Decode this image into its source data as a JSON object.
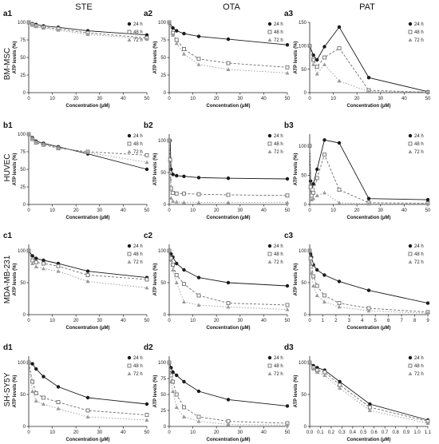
{
  "figure": {
    "column_headers": [
      "STE",
      "OTA",
      "PAT"
    ],
    "row_headers": [
      "BM-MSC",
      "HUVEC",
      "MDA-MB-231",
      "SH-SY5Y"
    ],
    "colors": {
      "s24": "#1a1a1a",
      "s48": "#6e6e6e",
      "s72": "#9a9a9a"
    }
  },
  "chart_data": [
    {
      "id": "a1",
      "type": "line",
      "xlabel": "Concentration (μM)",
      "ylabel": "ATP levels (%)",
      "x": [
        0,
        1.56,
        3.12,
        6.25,
        12.5,
        25,
        50
      ],
      "xticks": [
        0,
        10,
        20,
        30,
        40,
        50
      ],
      "xlim": [
        0,
        50
      ],
      "yticks": [
        0,
        25,
        50,
        75,
        100
      ],
      "ylim": [
        0,
        100
      ],
      "legend": "top-right",
      "series": [
        {
          "name": "24 h",
          "values": [
            100,
            98,
            97,
            95,
            93,
            88,
            82
          ]
        },
        {
          "name": "48 h",
          "values": [
            100,
            97,
            95,
            93,
            91,
            85,
            78
          ]
        },
        {
          "name": "72 h",
          "values": [
            100,
            96,
            94,
            92,
            89,
            83,
            76
          ]
        }
      ]
    },
    {
      "id": "a2",
      "type": "line",
      "xlabel": "Concentration (μM)",
      "ylabel": "ATP levels (%)",
      "x": [
        0,
        1.56,
        3.12,
        6.25,
        12.5,
        25,
        50
      ],
      "xticks": [
        0,
        10,
        20,
        30,
        40,
        50
      ],
      "xlim": [
        0,
        50
      ],
      "yticks": [
        0,
        25,
        50,
        75,
        100
      ],
      "ylim": [
        0,
        100
      ],
      "legend": "top-right",
      "series": [
        {
          "name": "24 h",
          "values": [
            100,
            92,
            88,
            84,
            80,
            76,
            68
          ]
        },
        {
          "name": "48 h",
          "values": [
            100,
            85,
            75,
            62,
            48,
            42,
            36
          ]
        },
        {
          "name": "72 h",
          "values": [
            100,
            82,
            70,
            55,
            40,
            33,
            28
          ]
        }
      ]
    },
    {
      "id": "a3",
      "type": "line",
      "xlabel": "Concentration (μM)",
      "ylabel": "ATP levels (%)",
      "x": [
        0,
        1.56,
        3.12,
        6.25,
        12.5,
        25,
        50
      ],
      "xticks": [
        0,
        10,
        20,
        30,
        40,
        50
      ],
      "xlim": [
        0,
        50
      ],
      "yticks": [
        0,
        50,
        100,
        150
      ],
      "ylim": [
        0,
        150
      ],
      "legend": "top-right",
      "series": [
        {
          "name": "24 h",
          "values": [
            100,
            80,
            70,
            98,
            140,
            32,
            2
          ]
        },
        {
          "name": "48 h",
          "values": [
            100,
            70,
            55,
            75,
            95,
            5,
            1
          ]
        },
        {
          "name": "72 h",
          "values": [
            100,
            60,
            40,
            60,
            25,
            2,
            1
          ]
        }
      ]
    },
    {
      "id": "b1",
      "type": "line",
      "xlabel": "Concentration (μM)",
      "ylabel": "ATP levels (%)",
      "x": [
        0,
        1.56,
        3.12,
        6.25,
        12.5,
        25,
        50
      ],
      "xticks": [
        0,
        10,
        20,
        30,
        40,
        50
      ],
      "xlim": [
        0,
        50
      ],
      "yticks": [
        0,
        25,
        50,
        75,
        100
      ],
      "ylim": [
        0,
        100
      ],
      "legend": "top-right",
      "series": [
        {
          "name": "24 h",
          "values": [
            100,
            95,
            90,
            87,
            82,
            72,
            50
          ]
        },
        {
          "name": "48 h",
          "values": [
            100,
            93,
            88,
            85,
            80,
            75,
            70
          ]
        },
        {
          "name": "72 h",
          "values": [
            100,
            94,
            89,
            86,
            81,
            74,
            60
          ]
        }
      ]
    },
    {
      "id": "b2",
      "type": "line",
      "xlabel": "Concentration (μM)",
      "ylabel": "ATP levels (%)",
      "x": [
        0,
        0.39,
        0.78,
        1.56,
        3.12,
        6.25,
        12.5,
        25,
        50
      ],
      "xticks": [
        0,
        10,
        20,
        30,
        40,
        50
      ],
      "xlim": [
        0,
        50
      ],
      "yticks": [
        0,
        50,
        100
      ],
      "ylim": [
        0,
        110
      ],
      "legend": "top-right",
      "series": [
        {
          "name": "24 h",
          "values": [
            100,
            100,
            55,
            47,
            45,
            44,
            42,
            41,
            40
          ]
        },
        {
          "name": "48 h",
          "values": [
            100,
            70,
            25,
            18,
            17,
            17,
            16,
            15,
            14
          ]
        },
        {
          "name": "72 h",
          "values": [
            100,
            40,
            10,
            5,
            4,
            3,
            3,
            3,
            3
          ]
        }
      ]
    },
    {
      "id": "b3",
      "type": "line",
      "xlabel": "Concentration (μM)",
      "ylabel": "ATP levels (%)",
      "x": [
        0,
        0.39,
        0.78,
        1.56,
        3.12,
        6.25,
        12.5,
        25,
        50
      ],
      "xticks": [
        0,
        10,
        20,
        30,
        40,
        50
      ],
      "xlim": [
        0,
        50
      ],
      "yticks": [
        0,
        50,
        100
      ],
      "ylim": [
        0,
        120
      ],
      "legend": "top-right",
      "series": [
        {
          "name": "24 h",
          "values": [
            100,
            40,
            30,
            35,
            60,
            110,
            105,
            10,
            8
          ]
        },
        {
          "name": "48 h",
          "values": [
            100,
            30,
            15,
            20,
            45,
            85,
            25,
            3,
            2
          ]
        },
        {
          "name": "72 h",
          "values": [
            100,
            20,
            8,
            10,
            15,
            20,
            3,
            1,
            1
          ]
        }
      ]
    },
    {
      "id": "c1",
      "type": "line",
      "xlabel": "Concentration (μM)",
      "ylabel": "ATP levels (%)",
      "x": [
        0,
        1.56,
        3.12,
        6.25,
        12.5,
        25,
        50
      ],
      "xticks": [
        0,
        10,
        20,
        30,
        40,
        50
      ],
      "xlim": [
        0,
        50
      ],
      "yticks": [
        0,
        50,
        100
      ],
      "ylim": [
        0,
        110
      ],
      "legend": "top-right",
      "series": [
        {
          "name": "24 h",
          "values": [
            100,
            92,
            88,
            85,
            80,
            68,
            58
          ]
        },
        {
          "name": "48 h",
          "values": [
            100,
            85,
            82,
            80,
            76,
            62,
            55
          ]
        },
        {
          "name": "72 h",
          "values": [
            100,
            80,
            75,
            72,
            68,
            52,
            42
          ]
        }
      ]
    },
    {
      "id": "c2",
      "type": "line",
      "xlabel": "Concentration (μM)",
      "ylabel": "ATP levels (%)",
      "x": [
        0,
        0.78,
        1.56,
        3.12,
        6.25,
        12.5,
        25,
        50
      ],
      "xticks": [
        0,
        10,
        20,
        30,
        40,
        50
      ],
      "xlim": [
        0,
        50
      ],
      "yticks": [
        0,
        50,
        100
      ],
      "ylim": [
        0,
        110
      ],
      "legend": "top-right",
      "series": [
        {
          "name": "24 h",
          "values": [
            100,
            95,
            90,
            80,
            70,
            58,
            50,
            45
          ]
        },
        {
          "name": "48 h",
          "values": [
            100,
            88,
            78,
            62,
            48,
            30,
            18,
            15
          ]
        },
        {
          "name": "72 h",
          "values": [
            100,
            85,
            70,
            50,
            20,
            15,
            12,
            8
          ]
        }
      ]
    },
    {
      "id": "c3",
      "type": "line",
      "xlabel": "Concentration (μM)",
      "ylabel": "ATP levels (%)",
      "x": [
        0,
        0.07,
        0.14,
        0.28,
        0.56,
        1.12,
        2.25,
        4.5,
        9
      ],
      "xticks": [
        0,
        1,
        2,
        3,
        4,
        5,
        6,
        7,
        8,
        9
      ],
      "xlim": [
        0,
        9
      ],
      "yticks": [
        0,
        50,
        100
      ],
      "ylim": [
        0,
        110
      ],
      "legend": "top-right",
      "series": [
        {
          "name": "24 h",
          "values": [
            100,
            95,
            90,
            78,
            70,
            62,
            52,
            38,
            18
          ]
        },
        {
          "name": "48 h",
          "values": [
            100,
            88,
            80,
            60,
            45,
            30,
            18,
            10,
            4
          ]
        },
        {
          "name": "72 h",
          "values": [
            100,
            80,
            65,
            45,
            30,
            20,
            12,
            6,
            2
          ]
        }
      ]
    },
    {
      "id": "d1",
      "type": "line",
      "xlabel": "Concentration (μM)",
      "ylabel": "ATP levels (%)",
      "x": [
        0,
        1.56,
        3.12,
        6.25,
        12.5,
        25,
        50
      ],
      "xticks": [
        0,
        10,
        20,
        30,
        40,
        50
      ],
      "xlim": [
        0,
        50
      ],
      "yticks": [
        0,
        50,
        100
      ],
      "ylim": [
        0,
        110
      ],
      "legend": "top-right",
      "series": [
        {
          "name": "24 h",
          "values": [
            100,
            98,
            90,
            78,
            62,
            45,
            35
          ]
        },
        {
          "name": "48 h",
          "values": [
            100,
            70,
            52,
            45,
            38,
            25,
            18
          ]
        },
        {
          "name": "72 h",
          "values": [
            100,
            55,
            40,
            35,
            28,
            15,
            10
          ]
        }
      ]
    },
    {
      "id": "d2",
      "type": "line",
      "xlabel": "Concentration (μM)",
      "ylabel": "ATP levels (%)",
      "x": [
        0,
        0.78,
        1.56,
        3.12,
        6.25,
        12.5,
        25,
        50
      ],
      "xticks": [
        0,
        10,
        20,
        30,
        40,
        50
      ],
      "xlim": [
        0,
        50
      ],
      "yticks": [
        0,
        25,
        50,
        75,
        100
      ],
      "ylim": [
        0,
        110
      ],
      "legend": "top-right",
      "series": [
        {
          "name": "24 h",
          "values": [
            100,
            92,
            85,
            80,
            70,
            55,
            42,
            32
          ]
        },
        {
          "name": "48 h",
          "values": [
            100,
            80,
            70,
            50,
            30,
            15,
            8,
            5
          ]
        },
        {
          "name": "72 h",
          "values": [
            100,
            70,
            55,
            30,
            15,
            8,
            3,
            2
          ]
        }
      ]
    },
    {
      "id": "d3",
      "type": "line",
      "xlabel": "Concentration (μM)",
      "ylabel": "ATP levels (%)",
      "x": [
        0,
        0.035,
        0.07,
        0.14,
        0.28,
        0.56,
        1.1
      ],
      "xticks": [
        0.0,
        0.1,
        0.2,
        0.3,
        0.4,
        0.5,
        0.6,
        0.7,
        0.8,
        0.9,
        1.0,
        1.1
      ],
      "xlim": [
        0,
        1.1
      ],
      "yticks": [
        0,
        50,
        100
      ],
      "ylim": [
        0,
        110
      ],
      "legend": "top-right",
      "series": [
        {
          "name": "24 h",
          "values": [
            100,
            95,
            92,
            88,
            70,
            35,
            10
          ]
        },
        {
          "name": "48 h",
          "values": [
            100,
            92,
            88,
            85,
            65,
            30,
            8
          ]
        },
        {
          "name": "72 h",
          "values": [
            100,
            90,
            85,
            80,
            60,
            25,
            5
          ]
        }
      ]
    }
  ]
}
